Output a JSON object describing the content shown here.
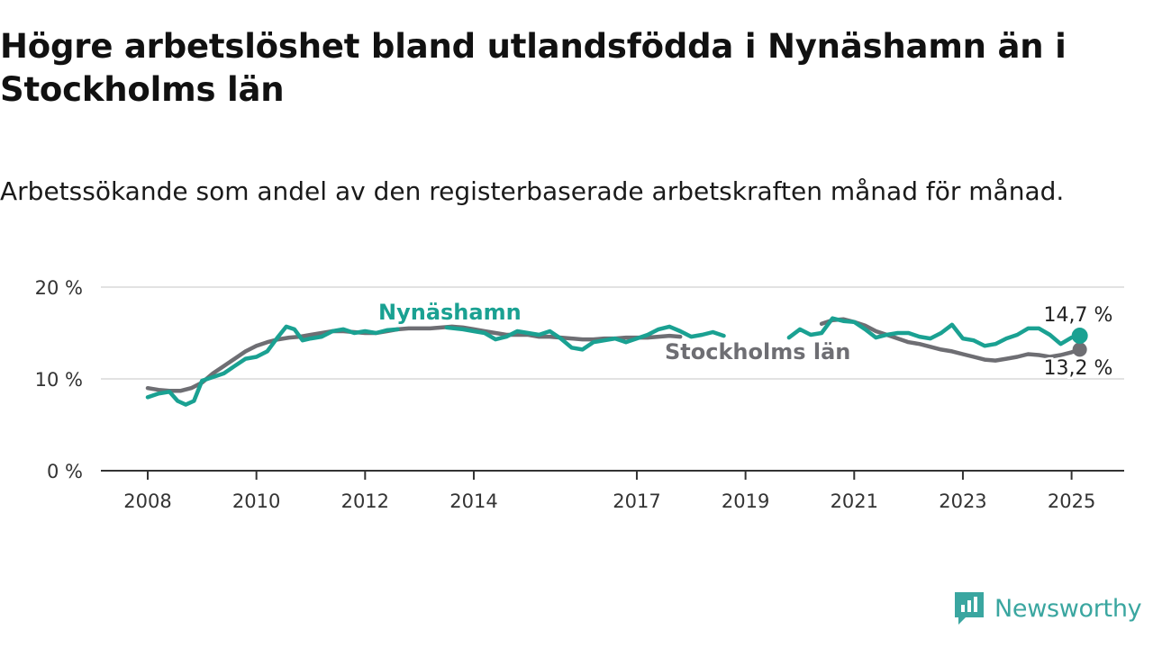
{
  "chart_data": {
    "type": "line",
    "title": "Högre arbetslöshet bland utlandsfödda i Nynäshamn än i Stockholms län",
    "subtitle": "Arbetssökande som andel av den registerbaserade arbetskraften månad för månad.",
    "y_ticks": [
      "0 %",
      "10 %",
      "20 %"
    ],
    "y_tick_values": [
      0,
      10,
      20
    ],
    "ylim": [
      0,
      20
    ],
    "xlim": [
      2008,
      2025.6
    ],
    "x_ticks": [
      "2008",
      "2010",
      "2012",
      "2014",
      "2017",
      "2019",
      "2021",
      "2023",
      "2025"
    ],
    "x_tick_values": [
      2008,
      2010,
      2012,
      2014,
      2017,
      2019,
      2021,
      2023,
      2025
    ],
    "grid": "horizontal",
    "series": [
      {
        "name": "Nynäshamn",
        "color": "#1aa192",
        "segments": [
          [
            [
              2008.0,
              8.0
            ],
            [
              2008.2,
              8.4
            ],
            [
              2008.4,
              8.6
            ],
            [
              2008.55,
              7.6
            ],
            [
              2008.7,
              7.2
            ],
            [
              2008.85,
              7.6
            ],
            [
              2009.0,
              9.8
            ],
            [
              2009.2,
              10.2
            ],
            [
              2009.4,
              10.6
            ],
            [
              2009.6,
              11.4
            ],
            [
              2009.8,
              12.2
            ],
            [
              2010.0,
              12.4
            ],
            [
              2010.2,
              13.0
            ],
            [
              2010.4,
              14.6
            ],
            [
              2010.55,
              15.7
            ],
            [
              2010.7,
              15.4
            ],
            [
              2010.85,
              14.2
            ],
            [
              2011.0,
              14.4
            ],
            [
              2011.2,
              14.6
            ],
            [
              2011.4,
              15.2
            ],
            [
              2011.6,
              15.4
            ],
            [
              2011.8,
              15.0
            ],
            [
              2012.0,
              15.2
            ],
            [
              2012.2,
              15.0
            ],
            [
              2012.4,
              15.3
            ],
            [
              2012.6,
              15.4
            ]
          ],
          [
            [
              2013.5,
              15.6
            ],
            [
              2013.8,
              15.4
            ],
            [
              2014.0,
              15.2
            ],
            [
              2014.2,
              15.0
            ],
            [
              2014.4,
              14.3
            ],
            [
              2014.6,
              14.6
            ],
            [
              2014.8,
              15.2
            ],
            [
              2015.0,
              15.0
            ],
            [
              2015.2,
              14.8
            ],
            [
              2015.4,
              15.2
            ],
            [
              2015.6,
              14.4
            ],
            [
              2015.8,
              13.4
            ],
            [
              2016.0,
              13.2
            ],
            [
              2016.2,
              14.0
            ],
            [
              2016.4,
              14.2
            ],
            [
              2016.6,
              14.4
            ],
            [
              2016.8,
              14.0
            ],
            [
              2017.0,
              14.4
            ],
            [
              2017.2,
              14.8
            ],
            [
              2017.4,
              15.4
            ],
            [
              2017.6,
              15.7
            ],
            [
              2017.8,
              15.2
            ],
            [
              2018.0,
              14.6
            ],
            [
              2018.2,
              14.8
            ],
            [
              2018.4,
              15.1
            ],
            [
              2018.6,
              14.7
            ]
          ],
          [
            [
              2019.8,
              14.5
            ],
            [
              2020.0,
              15.4
            ],
            [
              2020.2,
              14.8
            ],
            [
              2020.4,
              15.0
            ],
            [
              2020.6,
              16.6
            ],
            [
              2020.8,
              16.3
            ],
            [
              2021.0,
              16.2
            ],
            [
              2021.2,
              15.4
            ],
            [
              2021.4,
              14.5
            ],
            [
              2021.6,
              14.8
            ],
            [
              2021.8,
              15.0
            ],
            [
              2022.0,
              15.0
            ],
            [
              2022.2,
              14.6
            ],
            [
              2022.4,
              14.4
            ],
            [
              2022.6,
              15.0
            ],
            [
              2022.8,
              15.9
            ],
            [
              2023.0,
              14.4
            ],
            [
              2023.2,
              14.2
            ],
            [
              2023.4,
              13.6
            ],
            [
              2023.6,
              13.8
            ],
            [
              2023.8,
              14.4
            ],
            [
              2024.0,
              14.8
            ],
            [
              2024.2,
              15.5
            ],
            [
              2024.4,
              15.5
            ],
            [
              2024.6,
              14.8
            ],
            [
              2024.8,
              13.8
            ],
            [
              2025.0,
              14.5
            ],
            [
              2025.15,
              14.7
            ]
          ]
        ]
      },
      {
        "name": "Stockholms län",
        "color": "#6e6e73",
        "segments": [
          [
            [
              2008.0,
              9.0
            ],
            [
              2008.2,
              8.8
            ],
            [
              2008.4,
              8.7
            ],
            [
              2008.6,
              8.7
            ],
            [
              2008.8,
              9.0
            ],
            [
              2009.0,
              9.6
            ],
            [
              2009.2,
              10.6
            ],
            [
              2009.4,
              11.4
            ],
            [
              2009.6,
              12.2
            ],
            [
              2009.8,
              13.0
            ],
            [
              2010.0,
              13.6
            ],
            [
              2010.2,
              14.0
            ],
            [
              2010.4,
              14.3
            ],
            [
              2010.6,
              14.5
            ],
            [
              2010.8,
              14.6
            ],
            [
              2011.0,
              14.8
            ],
            [
              2011.2,
              15.0
            ],
            [
              2011.4,
              15.2
            ],
            [
              2011.6,
              15.2
            ],
            [
              2011.8,
              15.1
            ],
            [
              2012.0,
              15.0
            ],
            [
              2012.2,
              15.0
            ],
            [
              2012.4,
              15.2
            ],
            [
              2012.6,
              15.4
            ],
            [
              2012.8,
              15.5
            ],
            [
              2013.0,
              15.5
            ],
            [
              2013.2,
              15.5
            ],
            [
              2013.4,
              15.6
            ],
            [
              2013.6,
              15.7
            ],
            [
              2013.8,
              15.6
            ],
            [
              2014.0,
              15.4
            ],
            [
              2014.2,
              15.2
            ],
            [
              2014.4,
              15.0
            ],
            [
              2014.6,
              14.8
            ],
            [
              2014.8,
              14.8
            ],
            [
              2015.0,
              14.8
            ],
            [
              2015.2,
              14.6
            ],
            [
              2015.4,
              14.6
            ],
            [
              2015.6,
              14.5
            ],
            [
              2015.8,
              14.4
            ],
            [
              2016.0,
              14.3
            ],
            [
              2016.2,
              14.3
            ],
            [
              2016.4,
              14.4
            ],
            [
              2016.6,
              14.4
            ],
            [
              2016.8,
              14.5
            ],
            [
              2017.0,
              14.5
            ],
            [
              2017.2,
              14.5
            ],
            [
              2017.4,
              14.6
            ],
            [
              2017.6,
              14.7
            ],
            [
              2017.8,
              14.6
            ]
          ],
          [
            [
              2020.4,
              16.0
            ],
            [
              2020.6,
              16.4
            ],
            [
              2020.8,
              16.5
            ],
            [
              2021.0,
              16.2
            ],
            [
              2021.2,
              15.8
            ],
            [
              2021.4,
              15.2
            ],
            [
              2021.6,
              14.8
            ],
            [
              2021.8,
              14.4
            ],
            [
              2022.0,
              14.0
            ],
            [
              2022.2,
              13.8
            ],
            [
              2022.4,
              13.5
            ],
            [
              2022.6,
              13.2
            ],
            [
              2022.8,
              13.0
            ],
            [
              2023.0,
              12.7
            ],
            [
              2023.2,
              12.4
            ],
            [
              2023.4,
              12.1
            ],
            [
              2023.6,
              12.0
            ],
            [
              2023.8,
              12.2
            ],
            [
              2024.0,
              12.4
            ],
            [
              2024.2,
              12.7
            ],
            [
              2024.4,
              12.6
            ],
            [
              2024.6,
              12.4
            ],
            [
              2024.8,
              12.6
            ],
            [
              2025.0,
              12.9
            ],
            [
              2025.15,
              13.2
            ]
          ]
        ]
      }
    ],
    "end_labels": {
      "nynashamn": "14,7 %",
      "stockholm": "13,2 %"
    }
  },
  "brand": {
    "name": "Newsworthy",
    "icon": "newsworthy-logo-icon"
  }
}
